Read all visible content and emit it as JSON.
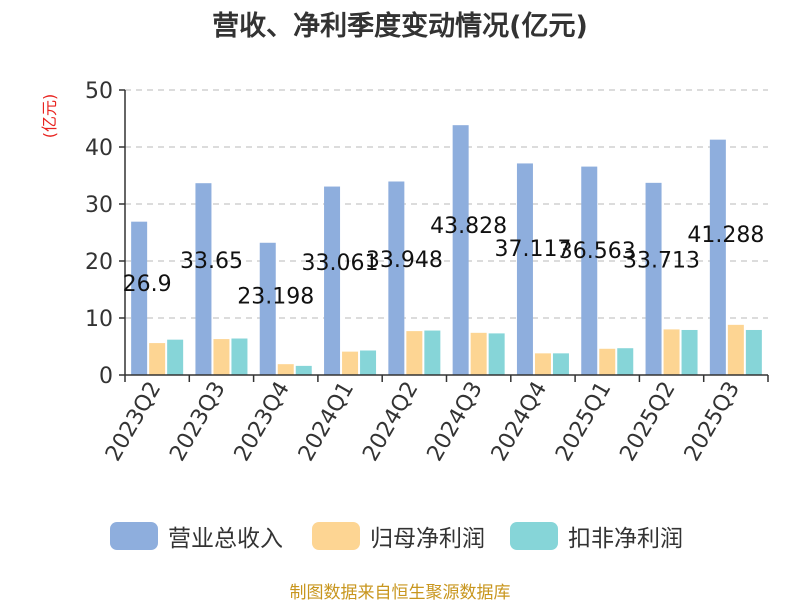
{
  "title": "营收、净利季度变动情况(亿元)",
  "unit_label": "(亿元)",
  "source": "制图数据来自恒生聚源数据库",
  "chart_data": {
    "type": "bar",
    "categories": [
      "2023Q2",
      "2023Q3",
      "2023Q4",
      "2024Q1",
      "2024Q2",
      "2024Q3",
      "2024Q4",
      "2025Q1",
      "2025Q2",
      "2025Q3"
    ],
    "series": [
      {
        "name": "营业总收入",
        "color": "#8eaedd",
        "values": [
          26.9,
          33.65,
          23.198,
          33.061,
          33.948,
          43.828,
          37.117,
          36.563,
          33.713,
          41.288
        ],
        "labels": [
          "26.9",
          "33.65",
          "23.198",
          "33.061",
          "33.948",
          "43.828",
          "37.117",
          "36.563",
          "33.713",
          "41.288"
        ]
      },
      {
        "name": "归母净利润",
        "color": "#fdd593",
        "values": [
          5.6,
          6.3,
          1.9,
          4.1,
          7.7,
          7.4,
          3.8,
          4.6,
          8.0,
          8.8
        ]
      },
      {
        "name": "扣非净利润",
        "color": "#86d5d8",
        "values": [
          6.2,
          6.4,
          1.6,
          4.3,
          7.8,
          7.3,
          3.8,
          4.7,
          7.9,
          7.9
        ]
      }
    ],
    "ylim": [
      0,
      50
    ],
    "yticks": [
      0,
      10,
      20,
      30,
      40,
      50
    ],
    "grid": true,
    "legend_position": "bottom"
  }
}
